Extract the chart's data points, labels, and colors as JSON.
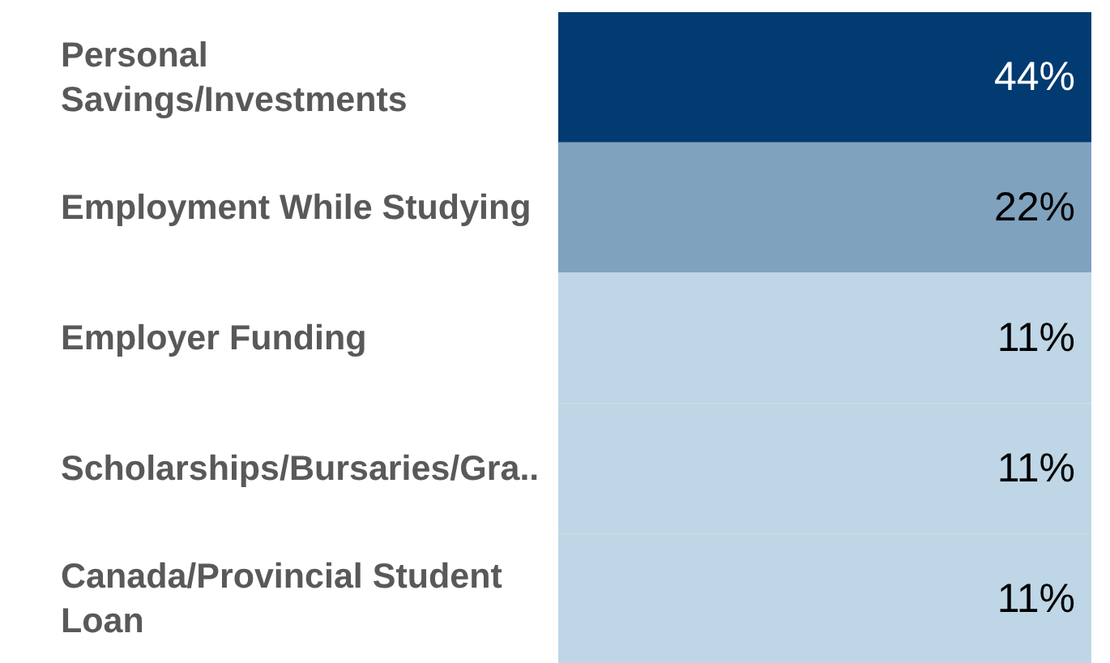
{
  "chart_data": {
    "type": "heatmap",
    "categories": [
      null
    ],
    "y_categories": [
      "Personal Savings/Investments",
      "Employment While Studying",
      "Employer Funding",
      "Scholarships/Bursaries/Gra..",
      "Canada/Provincial Student Loan"
    ],
    "cells": [
      [
        44
      ],
      [
        22
      ],
      [
        11
      ],
      [
        11
      ],
      [
        11
      ]
    ],
    "cell_labels": [
      [
        "44%"
      ],
      [
        "22%"
      ],
      [
        "11%"
      ],
      [
        "11%"
      ],
      [
        "11%"
      ]
    ],
    "colors": [
      "#bed6e5",
      "#013b71"
    ]
  }
}
